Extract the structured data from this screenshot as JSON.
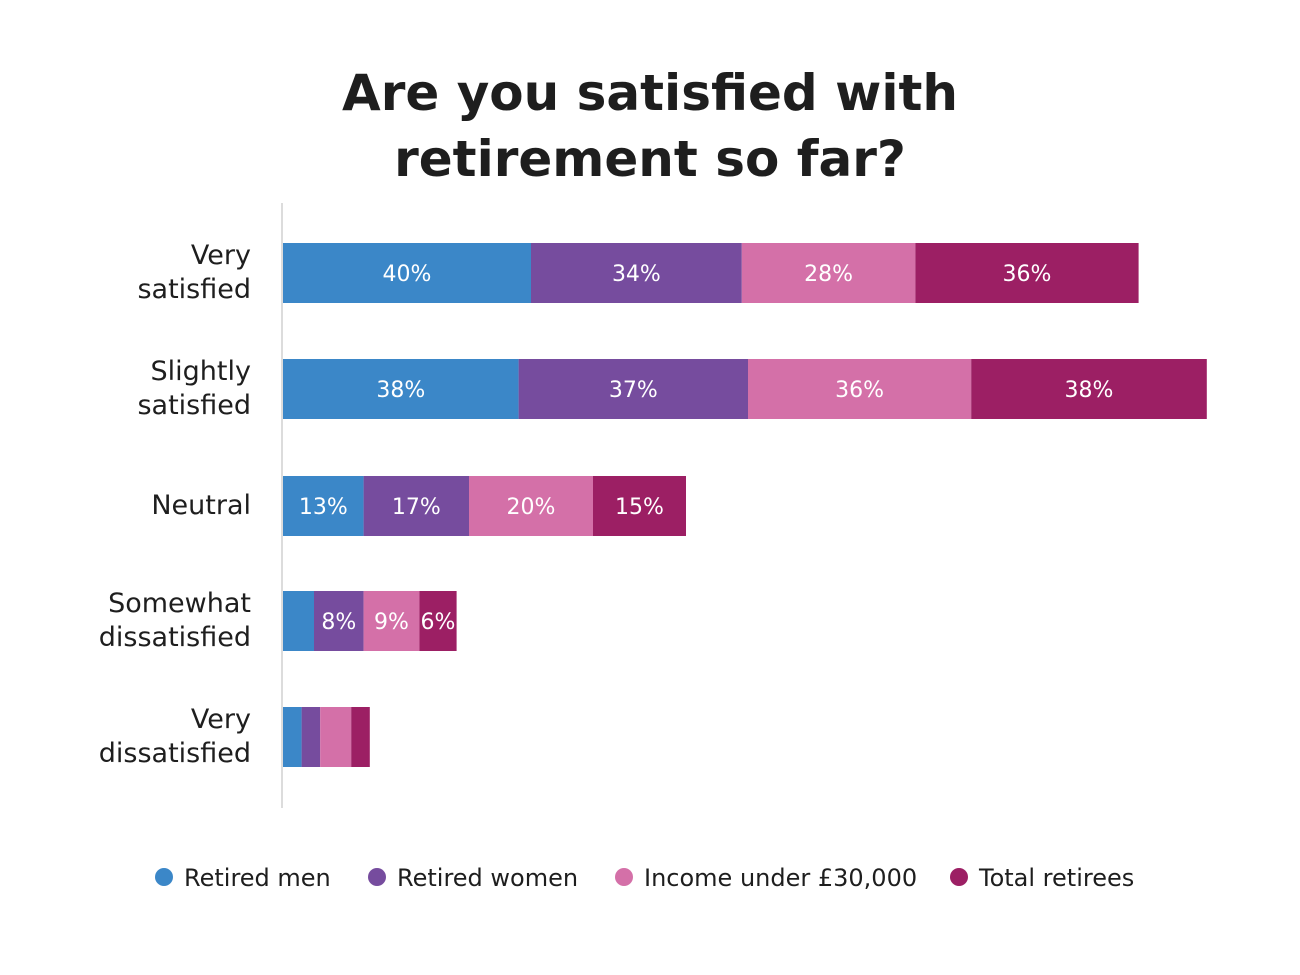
{
  "chart_data": {
    "type": "bar",
    "orientation": "horizontal",
    "stacked": true,
    "title_lines": [
      "Are you satisfied with",
      "retirement so far?"
    ],
    "categories": [
      [
        "Very",
        "satisfied"
      ],
      [
        "Slightly",
        "satisfied"
      ],
      [
        "Neutral"
      ],
      [
        "Somewhat",
        "dissatisfied"
      ],
      [
        "Very",
        "dissatisfied"
      ]
    ],
    "series": [
      {
        "name": "Retired men",
        "color": "#3b87c8",
        "values": [
          40,
          38,
          13,
          5,
          3
        ]
      },
      {
        "name": "Retired women",
        "color": "#764c9e",
        "values": [
          34,
          37,
          17,
          8,
          3
        ]
      },
      {
        "name": "Income under £30,000",
        "color": "#d470a8",
        "values": [
          28,
          36,
          20,
          9,
          5
        ]
      },
      {
        "name": "Total retirees",
        "color": "#9c1f64",
        "values": [
          36,
          38,
          15,
          6,
          3
        ]
      }
    ],
    "data_labels": [
      [
        "40%",
        "34%",
        "28%",
        "36%"
      ],
      [
        "38%",
        "37%",
        "36%",
        "38%"
      ],
      [
        "13%",
        "17%",
        "20%",
        "15%"
      ],
      [
        "",
        "8%",
        "9%",
        "6%"
      ],
      [
        "",
        "",
        "",
        ""
      ]
    ],
    "legend_position": "bottom",
    "grid": false
  }
}
